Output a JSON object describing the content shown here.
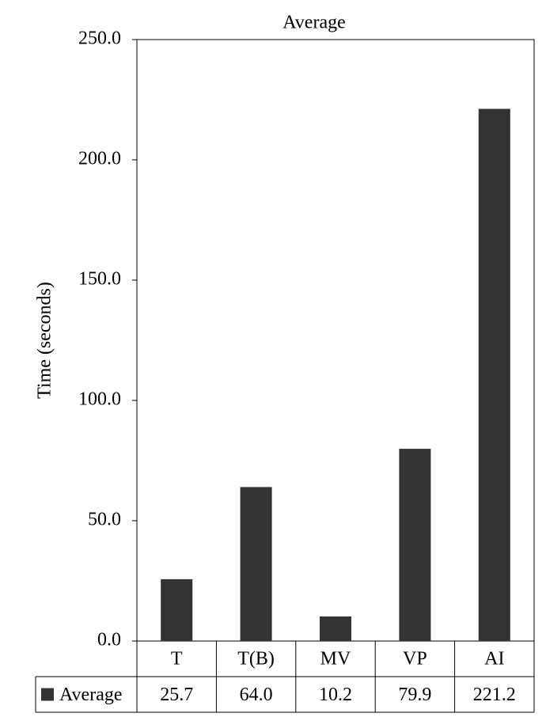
{
  "chart_data": {
    "type": "bar",
    "title": "Average",
    "y_label": "Time (seconds)",
    "categories": [
      "T",
      "T(B)",
      "MV",
      "VP",
      "AI"
    ],
    "series": [
      {
        "name": "Average",
        "color": "#333333",
        "values": [
          25.7,
          64.0,
          10.2,
          79.9,
          221.2
        ],
        "value_labels": [
          "25.7",
          "64.0",
          "10.2",
          "79.9",
          "221.2"
        ]
      }
    ],
    "ylim": [
      0,
      250
    ],
    "yticks": [
      {
        "value": 0,
        "label": "0.0"
      },
      {
        "value": 50,
        "label": "50.0"
      },
      {
        "value": 100,
        "label": "100.0"
      },
      {
        "value": 150,
        "label": "150.0"
      },
      {
        "value": 200,
        "label": "200.0"
      },
      {
        "value": 250,
        "label": "250.0"
      }
    ],
    "grid": false,
    "data_table": true
  }
}
